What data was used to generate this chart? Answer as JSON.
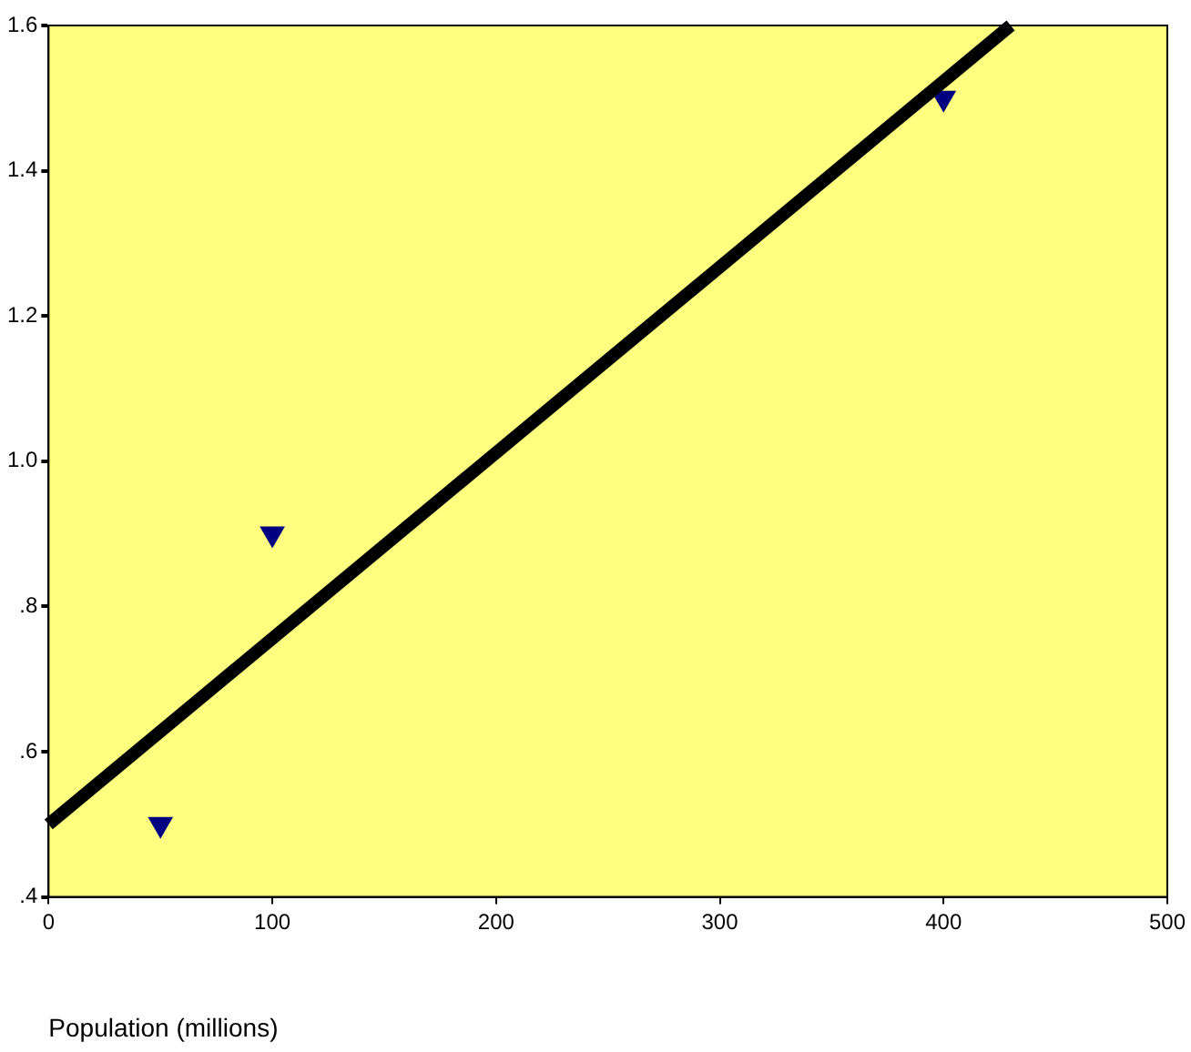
{
  "chart_data": {
    "type": "scatter",
    "xlabel": "Population (millions)",
    "x": [
      50,
      100,
      400
    ],
    "series": [
      {
        "type": "scatter",
        "color": "#000080",
        "values": [
          0.5,
          0.9,
          1.5
        ],
        "marker": "triangle"
      },
      {
        "type": "line",
        "color": "#000000",
        "x": [
          0,
          430
        ],
        "values": [
          0.5,
          1.6
        ],
        "marker": "none",
        "line_style": "solid"
      }
    ],
    "xlim": [
      0,
      500
    ],
    "xticks": [
      0,
      100,
      200,
      300,
      400,
      500
    ],
    "ylim": [
      0.4,
      1.6
    ],
    "yticks": [
      {
        "value": 0.4,
        "label": ".4"
      },
      {
        "value": 0.6,
        "label": ".6"
      },
      {
        "value": 0.8,
        "label": ".8"
      },
      {
        "value": 1,
        "label": "1.0"
      },
      1.2,
      1.4,
      1.6
    ],
    "grid": false,
    "legend": false
  }
}
